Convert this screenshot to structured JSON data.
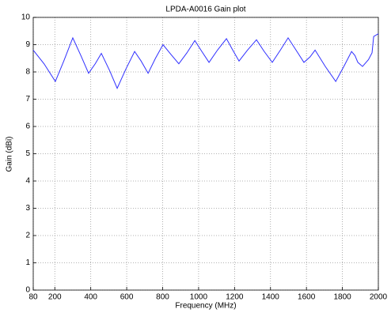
{
  "chart_data": {
    "type": "line",
    "title": "LPDA-A0016 Gain plot",
    "x_label": "Frequency (MHz)",
    "y_label": "Gain (dBi)",
    "x": [
      80,
      140,
      203,
      250,
      300,
      345,
      388,
      425,
      459,
      505,
      547,
      595,
      644,
      680,
      719,
      760,
      802,
      845,
      890,
      935,
      979,
      1018,
      1058,
      1105,
      1155,
      1190,
      1225,
      1272,
      1322,
      1365,
      1410,
      1455,
      1498,
      1542,
      1586,
      1620,
      1648,
      1705,
      1763,
      1808,
      1851,
      1870,
      1886,
      1912,
      1945,
      1965,
      1974,
      2000
    ],
    "series": [
      {
        "color": "#3030ff",
        "values": [
          8.8,
          8.3,
          7.65,
          8.4,
          9.25,
          8.6,
          7.95,
          8.3,
          8.68,
          8.05,
          7.4,
          8.1,
          8.75,
          8.4,
          7.95,
          8.5,
          9.0,
          8.65,
          8.3,
          8.7,
          9.15,
          8.75,
          8.35,
          8.8,
          9.22,
          8.8,
          8.4,
          8.8,
          9.18,
          8.75,
          8.35,
          8.8,
          9.25,
          8.8,
          8.35,
          8.55,
          8.8,
          8.2,
          7.65,
          8.2,
          8.75,
          8.6,
          8.35,
          8.2,
          8.45,
          8.7,
          9.3,
          9.4
        ]
      }
    ],
    "xlim": [
      80,
      2000
    ],
    "xticks": [
      80,
      200,
      400,
      600,
      800,
      1000,
      1200,
      1400,
      1600,
      1800,
      2000
    ],
    "ylim": [
      0,
      10
    ],
    "yticks": [
      0,
      1,
      2,
      3,
      4,
      5,
      6,
      7,
      8,
      9,
      10
    ],
    "grid": true
  }
}
